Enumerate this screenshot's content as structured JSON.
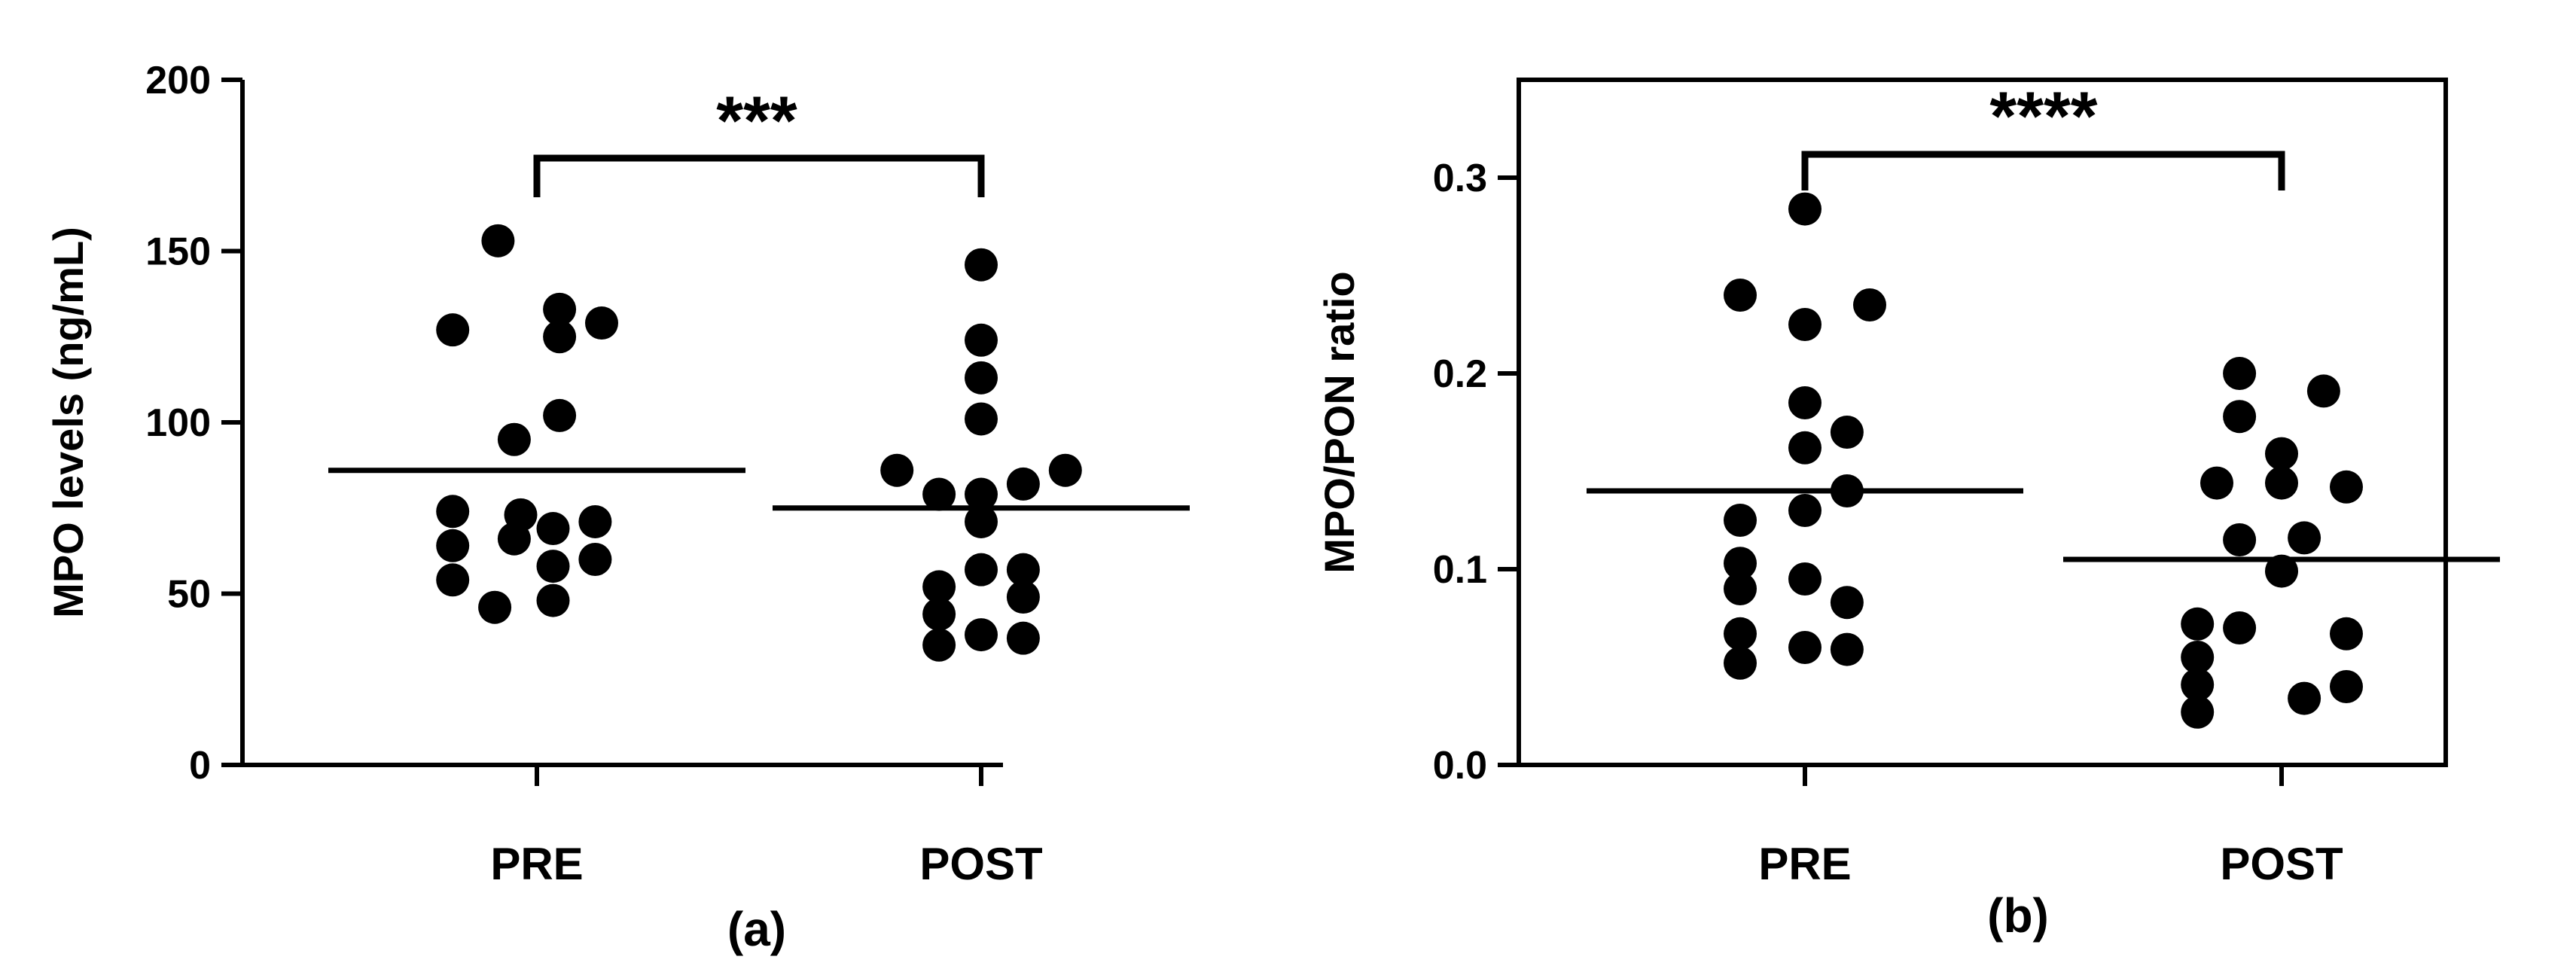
{
  "chart_data": [
    {
      "type": "scatter",
      "panel_label": "(a)",
      "ylabel": "MPO levels (ng/mL)",
      "xlabel": "",
      "categories": [
        "PRE",
        "POST"
      ],
      "ylim": [
        0,
        200
      ],
      "yticks": [
        0,
        50,
        100,
        150,
        200
      ],
      "ytick_labels": [
        "0",
        "50",
        "100",
        "150",
        "200"
      ],
      "grid": false,
      "legend": "none",
      "significance": {
        "from": "PRE",
        "to": "POST",
        "label": "***"
      },
      "series": [
        {
          "category": "PRE",
          "mean": 86,
          "points": [
            {
              "x": -0.12,
              "y": 153
            },
            {
              "x": -0.26,
              "y": 127
            },
            {
              "x": 0.07,
              "y": 133
            },
            {
              "x": 0.07,
              "y": 125
            },
            {
              "x": 0.2,
              "y": 129
            },
            {
              "x": 0.07,
              "y": 102
            },
            {
              "x": -0.07,
              "y": 95
            },
            {
              "x": -0.26,
              "y": 74
            },
            {
              "x": -0.05,
              "y": 73
            },
            {
              "x": 0.18,
              "y": 71
            },
            {
              "x": 0.05,
              "y": 69
            },
            {
              "x": -0.26,
              "y": 64
            },
            {
              "x": -0.07,
              "y": 66
            },
            {
              "x": 0.18,
              "y": 60
            },
            {
              "x": 0.05,
              "y": 58
            },
            {
              "x": -0.26,
              "y": 54
            },
            {
              "x": -0.13,
              "y": 46
            },
            {
              "x": 0.05,
              "y": 48
            }
          ]
        },
        {
          "category": "POST",
          "mean": 75,
          "points": [
            {
              "x": 0.0,
              "y": 146
            },
            {
              "x": 0.0,
              "y": 124
            },
            {
              "x": 0.0,
              "y": 113
            },
            {
              "x": 0.0,
              "y": 101
            },
            {
              "x": -0.26,
              "y": 86
            },
            {
              "x": 0.26,
              "y": 86
            },
            {
              "x": -0.13,
              "y": 79
            },
            {
              "x": 0.0,
              "y": 79
            },
            {
              "x": 0.13,
              "y": 82
            },
            {
              "x": 0.0,
              "y": 71
            },
            {
              "x": -0.13,
              "y": 52
            },
            {
              "x": 0.0,
              "y": 57
            },
            {
              "x": 0.13,
              "y": 57
            },
            {
              "x": -0.13,
              "y": 44
            },
            {
              "x": 0.13,
              "y": 49
            },
            {
              "x": -0.13,
              "y": 35
            },
            {
              "x": 0.0,
              "y": 38
            },
            {
              "x": 0.13,
              "y": 37
            }
          ]
        }
      ]
    },
    {
      "type": "scatter",
      "panel_label": "(b)",
      "ylabel": "MPO/PON ratio",
      "xlabel": "",
      "categories": [
        "PRE",
        "POST"
      ],
      "ylim": [
        0,
        0.35
      ],
      "yticks": [
        0,
        0.1,
        0.2,
        0.3
      ],
      "ytick_labels": [
        "0.0",
        "0.1",
        "0.2",
        "0.3"
      ],
      "grid": false,
      "legend": "none",
      "significance": {
        "from": "PRE",
        "to": "POST",
        "label": "****"
      },
      "series": [
        {
          "category": "PRE",
          "mean": 0.14,
          "points": [
            {
              "x": 0.0,
              "y": 0.284
            },
            {
              "x": -0.2,
              "y": 0.24
            },
            {
              "x": 0.0,
              "y": 0.225
            },
            {
              "x": 0.2,
              "y": 0.235
            },
            {
              "x": 0.0,
              "y": 0.185
            },
            {
              "x": 0.0,
              "y": 0.162
            },
            {
              "x": 0.13,
              "y": 0.17
            },
            {
              "x": 0.13,
              "y": 0.14
            },
            {
              "x": -0.2,
              "y": 0.125
            },
            {
              "x": 0.0,
              "y": 0.13
            },
            {
              "x": -0.2,
              "y": 0.103
            },
            {
              "x": -0.2,
              "y": 0.09
            },
            {
              "x": 0.0,
              "y": 0.095
            },
            {
              "x": 0.13,
              "y": 0.083
            },
            {
              "x": -0.2,
              "y": 0.067
            },
            {
              "x": -0.2,
              "y": 0.052
            },
            {
              "x": 0.0,
              "y": 0.06
            },
            {
              "x": 0.13,
              "y": 0.059
            }
          ]
        },
        {
          "category": "POST",
          "mean": 0.105,
          "points": [
            {
              "x": -0.13,
              "y": 0.2
            },
            {
              "x": -0.13,
              "y": 0.178
            },
            {
              "x": 0.13,
              "y": 0.191
            },
            {
              "x": 0.0,
              "y": 0.159
            },
            {
              "x": -0.2,
              "y": 0.144
            },
            {
              "x": 0.0,
              "y": 0.144
            },
            {
              "x": 0.2,
              "y": 0.142
            },
            {
              "x": -0.13,
              "y": 0.115
            },
            {
              "x": 0.07,
              "y": 0.116
            },
            {
              "x": 0.0,
              "y": 0.099
            },
            {
              "x": -0.26,
              "y": 0.072
            },
            {
              "x": -0.26,
              "y": 0.055
            },
            {
              "x": -0.26,
              "y": 0.041
            },
            {
              "x": -0.26,
              "y": 0.027
            },
            {
              "x": -0.13,
              "y": 0.07
            },
            {
              "x": 0.2,
              "y": 0.067
            },
            {
              "x": 0.07,
              "y": 0.034
            },
            {
              "x": 0.2,
              "y": 0.04
            }
          ]
        }
      ]
    }
  ]
}
